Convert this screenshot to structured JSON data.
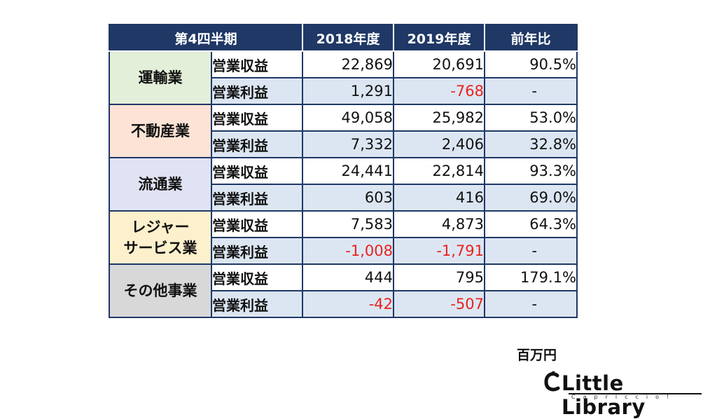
{
  "table": {
    "headers": [
      "第4四半期",
      "2018年度",
      "2019年度",
      "前年比"
    ],
    "segments": [
      {
        "name": "運輸業",
        "color": "#e4efd9",
        "rows": [
          {
            "metric": "営業収益",
            "fy2018": "22,869",
            "fy2019": "20,691",
            "yoy": "90.5%"
          },
          {
            "metric": "営業利益",
            "fy2018": "1,291",
            "fy2019": "-768",
            "yoy": "-"
          }
        ]
      },
      {
        "name": "不動産業",
        "color": "#fce3d5",
        "rows": [
          {
            "metric": "営業収益",
            "fy2018": "49,058",
            "fy2019": "25,982",
            "yoy": "53.0%"
          },
          {
            "metric": "営業利益",
            "fy2018": "7,332",
            "fy2019": "2,406",
            "yoy": "32.8%"
          }
        ]
      },
      {
        "name": "流通業",
        "color": "#dfe3f3",
        "rows": [
          {
            "metric": "営業収益",
            "fy2018": "24,441",
            "fy2019": "22,814",
            "yoy": "93.3%"
          },
          {
            "metric": "営業利益",
            "fy2018": "603",
            "fy2019": "416",
            "yoy": "69.0%"
          }
        ]
      },
      {
        "name": "レジャー\nサービス業",
        "color": "#fdf0cc",
        "rows": [
          {
            "metric": "営業収益",
            "fy2018": "7,583",
            "fy2019": "4,873",
            "yoy": "64.3%"
          },
          {
            "metric": "営業利益",
            "fy2018": "-1,008",
            "fy2019": "-1,791",
            "yoy": "-"
          }
        ]
      },
      {
        "name": "その他事業",
        "color": "#d8d8d8",
        "rows": [
          {
            "metric": "営業収益",
            "fy2018": "444",
            "fy2019": "795",
            "yoy": "179.1%"
          },
          {
            "metric": "営業利益",
            "fy2018": "-42",
            "fy2019": "-507",
            "yoy": "-"
          }
        ]
      }
    ]
  },
  "unit_label": "百万円",
  "logo": {
    "text": "Little Library",
    "subtext": "Capriccio!"
  }
}
